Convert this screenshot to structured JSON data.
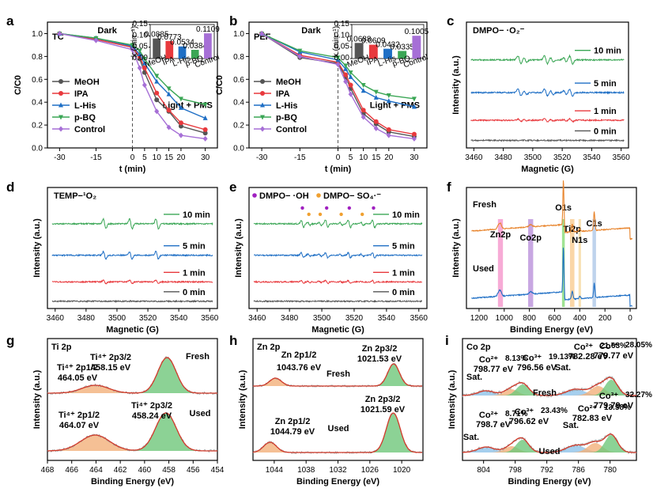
{
  "chart_data": [
    {
      "panel": "a",
      "type": "line",
      "title": "TC",
      "xlabel": "t (min)",
      "ylabel": "C/C0",
      "xlim": [
        -35,
        35
      ],
      "ylim": [
        0,
        1.1
      ],
      "x": [
        -30,
        -15,
        0,
        3,
        5,
        10,
        15,
        20,
        30
      ],
      "series": [
        {
          "name": "MeOH",
          "color": "#555555",
          "marker": "circle",
          "values": [
            1.0,
            0.95,
            0.88,
            0.78,
            0.66,
            0.42,
            0.32,
            0.19,
            0.13
          ]
        },
        {
          "name": "IPA",
          "color": "#e8393d",
          "marker": "circle",
          "values": [
            1.0,
            0.95,
            0.88,
            0.8,
            0.7,
            0.48,
            0.33,
            0.22,
            0.16
          ]
        },
        {
          "name": "L-His",
          "color": "#1f6fc5",
          "marker": "triangle",
          "values": [
            1.0,
            0.96,
            0.89,
            0.82,
            0.74,
            0.58,
            0.47,
            0.35,
            0.26
          ]
        },
        {
          "name": "p-BQ",
          "color": "#3aa655",
          "marker": "triangle-down",
          "values": [
            1.0,
            0.96,
            0.9,
            0.85,
            0.78,
            0.63,
            0.52,
            0.43,
            0.38
          ]
        },
        {
          "name": "Control",
          "color": "#a66fd6",
          "marker": "diamond",
          "values": [
            1.0,
            0.94,
            0.86,
            0.7,
            0.55,
            0.32,
            0.18,
            0.11,
            0.08
          ]
        }
      ],
      "annotations": [
        "Dark",
        "Light + PMS"
      ],
      "inset": {
        "ylabel": "k (min⁻¹)",
        "categories": [
          "MeOH",
          "IPA",
          "L-His",
          "p-BQ",
          "Control"
        ],
        "values": [
          0.0885,
          0.0773,
          0.0534,
          0.0384,
          0.1109
        ],
        "labels": [
          "0.0885",
          "0.0773",
          "0.0534",
          "0.0384",
          "0.1109"
        ],
        "colors": [
          "#555555",
          "#e8393d",
          "#1f6fc5",
          "#3aa655",
          "#a66fd6"
        ],
        "ylim": [
          0,
          0.15
        ],
        "ticks": [
          "0.00",
          "0.05",
          "0.10",
          "0.15"
        ]
      }
    },
    {
      "panel": "b",
      "type": "line",
      "title": "PEF",
      "xlabel": "t (min)",
      "ylabel": "C/C0",
      "xlim": [
        -35,
        35
      ],
      "ylim": [
        0,
        1.1
      ],
      "x": [
        -30,
        -15,
        0,
        3,
        5,
        10,
        15,
        20,
        30
      ],
      "series": [
        {
          "name": "MeOH",
          "color": "#555555",
          "marker": "circle",
          "values": [
            1.0,
            0.79,
            0.74,
            0.62,
            0.52,
            0.3,
            0.21,
            0.14,
            0.1
          ]
        },
        {
          "name": "IPA",
          "color": "#e8393d",
          "marker": "circle",
          "values": [
            1.0,
            0.81,
            0.75,
            0.64,
            0.55,
            0.33,
            0.23,
            0.16,
            0.12
          ]
        },
        {
          "name": "L-His",
          "color": "#1f6fc5",
          "marker": "triangle",
          "values": [
            1.0,
            0.84,
            0.77,
            0.69,
            0.62,
            0.5,
            0.44,
            0.41,
            0.36
          ]
        },
        {
          "name": "p-BQ",
          "color": "#3aa655",
          "marker": "triangle-down",
          "values": [
            1.0,
            0.85,
            0.79,
            0.72,
            0.66,
            0.55,
            0.49,
            0.46,
            0.43
          ]
        },
        {
          "name": "Control",
          "color": "#a66fd6",
          "marker": "diamond",
          "values": [
            1.0,
            0.8,
            0.73,
            0.58,
            0.47,
            0.27,
            0.17,
            0.11,
            0.08
          ]
        }
      ],
      "annotations": [
        "Dark",
        "Light + PMS"
      ],
      "inset": {
        "ylabel": "k (min⁻¹)",
        "categories": [
          "MeOH",
          "IPA",
          "L-His",
          "p-BQ",
          "Control"
        ],
        "values": [
          0.0688,
          0.0609,
          0.0432,
          0.0335,
          0.1005
        ],
        "labels": [
          "0.0688",
          "0.0609",
          "0.0432",
          "0.0335",
          "0.1005"
        ],
        "colors": [
          "#555555",
          "#e8393d",
          "#1f6fc5",
          "#3aa655",
          "#a66fd6"
        ],
        "ylim": [
          0,
          0.15
        ],
        "ticks": [
          "0.00",
          "0.05",
          "0.10",
          "0.15"
        ]
      }
    },
    {
      "panel": "c",
      "type": "line",
      "title": "DMPO− ·O₂⁻",
      "xlabel": "Magnetic (G)",
      "ylabel": "Intensity (a.u.)",
      "xlim": [
        3455,
        3565
      ],
      "xticks": [
        3460,
        3480,
        3500,
        3520,
        3540,
        3560
      ],
      "traces": [
        {
          "label": "10 min",
          "color": "#3aa655",
          "amp": 1.0
        },
        {
          "label": "5 min",
          "color": "#1f6fc5",
          "amp": 0.85
        },
        {
          "label": "1 min",
          "color": "#e8393d",
          "amp": 0.35
        },
        {
          "label": "0 min",
          "color": "#555555",
          "amp": 0.0
        }
      ],
      "peaks_G": [
        3491,
        3509,
        3526
      ]
    },
    {
      "panel": "d",
      "type": "line",
      "title": "TEMP−¹O₂",
      "xlabel": "Magnetic (G)",
      "ylabel": "Intensity (a.u.)",
      "xlim": [
        3455,
        3565
      ],
      "xticks": [
        3460,
        3480,
        3500,
        3520,
        3540,
        3560
      ],
      "traces": [
        {
          "label": "10 min",
          "color": "#3aa655",
          "amp": 1.0
        },
        {
          "label": "5 min",
          "color": "#1f6fc5",
          "amp": 0.75
        },
        {
          "label": "1 min",
          "color": "#e8393d",
          "amp": 0.35
        },
        {
          "label": "0 min",
          "color": "#555555",
          "amp": 0.0
        }
      ],
      "peaks_G": [
        3492,
        3509,
        3526
      ]
    },
    {
      "panel": "e",
      "type": "line",
      "title": "",
      "legend": [
        {
          "label": "DMPO− ·OH",
          "color": "#a020c0"
        },
        {
          "label": "DMPO− SO₄·⁻",
          "color": "#f0a030"
        }
      ],
      "xlabel": "Magnetic (G)",
      "ylabel": "Intensity (a.u.)",
      "xlim": [
        3455,
        3565
      ],
      "xticks": [
        3460,
        3480,
        3500,
        3520,
        3540,
        3560
      ],
      "traces": [
        {
          "label": "10 min",
          "color": "#3aa655",
          "amp": 1.0
        },
        {
          "label": "5 min",
          "color": "#1f6fc5",
          "amp": 0.7
        },
        {
          "label": "1 min",
          "color": "#e8393d",
          "amp": 0.4
        },
        {
          "label": "0 min",
          "color": "#555555",
          "amp": 0.0
        }
      ],
      "oh_peaks_G": [
        3488,
        3503,
        3517,
        3532
      ],
      "so4_peaks_G": [
        3492,
        3499,
        3512,
        3525
      ]
    },
    {
      "panel": "f",
      "type": "line",
      "title": "XPS survey",
      "xlabel": "Binding Energy (eV)",
      "ylabel": "Intensity (a.u.)",
      "xlim": [
        1300,
        -50
      ],
      "xticks": [
        1200,
        1000,
        800,
        600,
        400,
        200,
        0
      ],
      "traces": [
        {
          "label": "Fresh",
          "color": "#e8842c"
        },
        {
          "label": "Used",
          "color": "#1f6fc5"
        }
      ],
      "bands": [
        {
          "label": "Zn2p",
          "center": 1030,
          "width": 40,
          "color": "#f48fc8"
        },
        {
          "label": "Co2p",
          "center": 790,
          "width": 40,
          "color": "#b58ad8"
        },
        {
          "label": "O1s",
          "center": 530,
          "width": 22,
          "color": "#7fd96f"
        },
        {
          "label": "Ti2p",
          "center": 460,
          "width": 35,
          "color": "#f8c88a"
        },
        {
          "label": "N1s",
          "center": 400,
          "width": 20,
          "color": "#f5d79a"
        },
        {
          "label": "C1s",
          "center": 285,
          "width": 28,
          "color": "#a8c4e6"
        }
      ]
    },
    {
      "panel": "g",
      "type": "line",
      "title": "Ti 2p",
      "xlabel": "Binding Energy (eV)",
      "ylabel": "Intensity (a.u.)",
      "xlim": [
        468,
        454
      ],
      "xticks": [
        468,
        466,
        464,
        462,
        460,
        458,
        456,
        454
      ],
      "fresh": {
        "label": "Fresh",
        "peaks": [
          {
            "name": "Ti⁴⁺ 2p1/2",
            "center": 464.05,
            "text": "464.05 eV"
          },
          {
            "name": "Ti⁴⁺ 2p3/2",
            "center": 458.15,
            "text": "458.15 eV"
          }
        ]
      },
      "used": {
        "label": "Used",
        "peaks": [
          {
            "name": "Ti⁴⁺ 2p1/2",
            "center": 464.07,
            "text": "464.07 eV"
          },
          {
            "name": "Ti⁴⁺ 2p3/2",
            "center": 458.24,
            "text": "458.24 eV"
          }
        ]
      }
    },
    {
      "panel": "h",
      "type": "line",
      "title": "Zn 2p",
      "xlabel": "Binding Energy (eV)",
      "ylabel": "Intensity (a.u.)",
      "xlim": [
        1048,
        1016
      ],
      "xticks": [
        1044,
        1038,
        1032,
        1026,
        1020
      ],
      "fresh": {
        "label": "Fresh",
        "peaks": [
          {
            "name": "Zn 2p1/2",
            "center": 1043.76,
            "text": "1043.76 eV"
          },
          {
            "name": "Zn 2p3/2",
            "center": 1021.53,
            "text": "1021.53 eV"
          }
        ]
      },
      "used": {
        "label": "Used",
        "peaks": [
          {
            "name": "Zn 2p1/2",
            "center": 1044.79,
            "text": "1044.79 eV"
          },
          {
            "name": "Zn 2p3/2",
            "center": 1021.59,
            "text": "1021.59 eV"
          }
        ]
      }
    },
    {
      "panel": "i",
      "type": "line",
      "title": "Co 2p",
      "xlabel": "Binding Energy (eV)",
      "ylabel": "Intensity (a.u.)",
      "xlim": [
        808,
        775
      ],
      "xticks": [
        804,
        798,
        792,
        786,
        780
      ],
      "fresh": {
        "label": "Fresh",
        "peaks": [
          {
            "name": "Co²⁺",
            "pct": "8.13%",
            "text": "798.77 eV"
          },
          {
            "name": "Co³⁺",
            "pct": "19.13%",
            "text": "796.56 eV"
          },
          {
            "name": "Co²⁺",
            "pct": "21.63%",
            "text": "782.28 eV"
          },
          {
            "name": "Co³⁺",
            "pct": "28.05%",
            "text": "779.77 eV"
          }
        ]
      },
      "used": {
        "label": "Used",
        "peaks": [
          {
            "name": "Co²⁺",
            "pct": "8.71%",
            "text": "798.7 eV"
          },
          {
            "name": "Co³⁺",
            "pct": "23.43%",
            "text": "796.62 eV"
          },
          {
            "name": "Co²⁺",
            "pct": "13.58%",
            "text": "782.83 eV"
          },
          {
            "name": "Co³⁺",
            "pct": "32.27%",
            "text": "779.79 eV"
          }
        ]
      },
      "sat_label": "Sat."
    }
  ]
}
